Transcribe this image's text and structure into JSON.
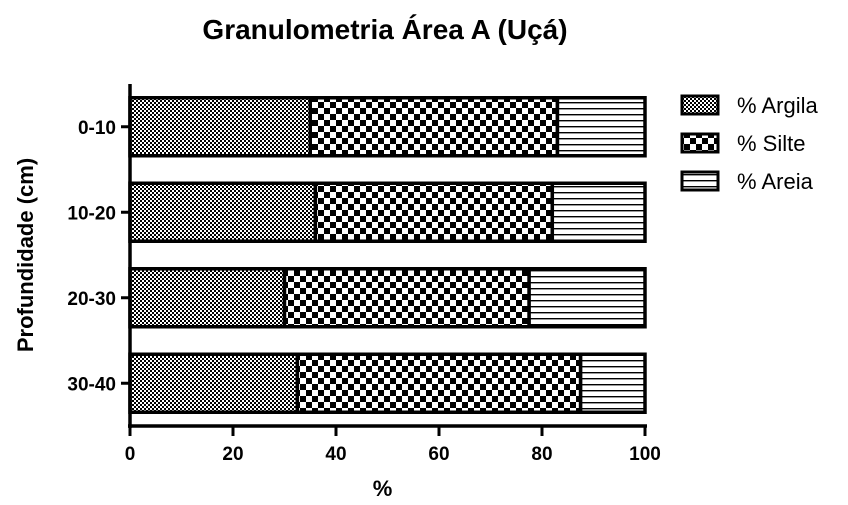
{
  "chart_data": {
    "type": "bar",
    "orientation": "horizontal",
    "stacked": true,
    "title": "Granulometria Área A (Uçá)",
    "xlabel": "%",
    "ylabel": "Profundidade (cm)",
    "xlim": [
      0,
      100
    ],
    "xticks": [
      "0",
      "20",
      "40",
      "60",
      "80",
      "100"
    ],
    "categories": [
      "0-10",
      "10-20",
      "20-30",
      "30-40"
    ],
    "series": [
      {
        "name": "% Argila",
        "pattern": "fine-dots",
        "values": [
          35,
          36,
          30,
          32.5
        ]
      },
      {
        "name": "% Silte",
        "pattern": "checkerboard",
        "values": [
          48,
          46,
          47.5,
          55
        ]
      },
      {
        "name": "% Areia",
        "pattern": "horizontal-lines",
        "values": [
          17,
          18,
          22.5,
          12.5
        ]
      }
    ],
    "legend_position": "right",
    "grid": false
  }
}
